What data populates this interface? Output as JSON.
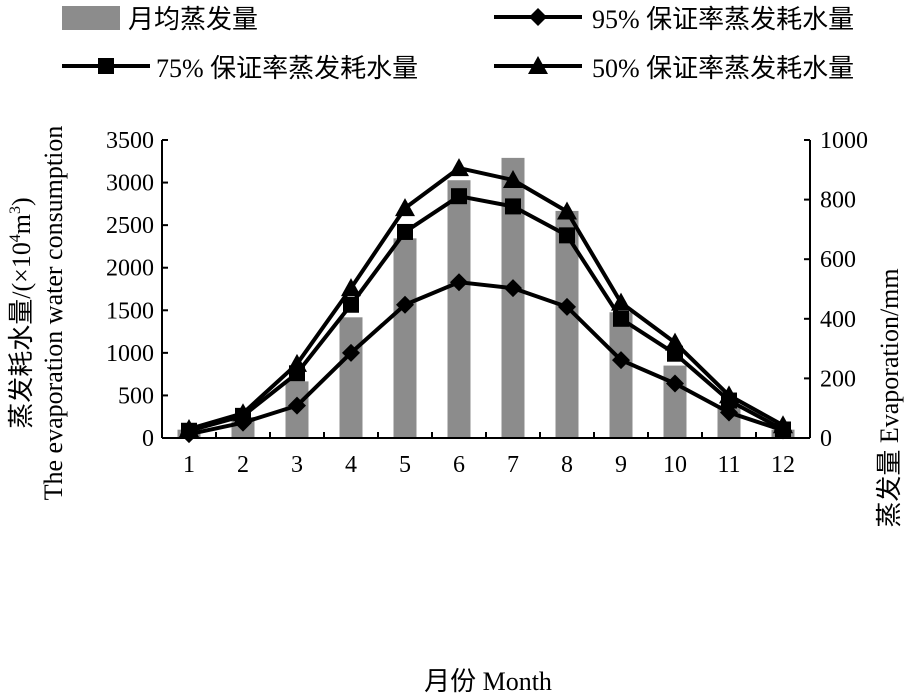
{
  "chart_data": {
    "type": "bar+line",
    "categories": [
      "1",
      "2",
      "3",
      "4",
      "5",
      "6",
      "7",
      "8",
      "9",
      "10",
      "11",
      "12"
    ],
    "bar_series": {
      "name": "月均蒸发量",
      "axis": "right",
      "color": "#8c8c8c",
      "values": [
        28,
        70,
        190,
        405,
        670,
        865,
        940,
        762,
        422,
        243,
        110,
        28
      ]
    },
    "line_series": [
      {
        "name": "95% 保证率蒸发耗水量",
        "marker": "diamond",
        "axis": "left",
        "values": [
          45,
          180,
          380,
          1000,
          1565,
          1830,
          1760,
          1540,
          915,
          640,
          300,
          90
        ]
      },
      {
        "name": "75% 保证率蒸发耗水量",
        "marker": "square",
        "axis": "left",
        "values": [
          85,
          260,
          760,
          1565,
          2420,
          2840,
          2720,
          2380,
          1400,
          990,
          440,
          100
        ]
      },
      {
        "name": "50% 保证率蒸发耗水量",
        "marker": "triangle",
        "axis": "left",
        "values": [
          105,
          290,
          870,
          1760,
          2700,
          3170,
          3030,
          2660,
          1590,
          1120,
          500,
          150
        ]
      }
    ],
    "xlabel": "月份 Month",
    "ylabel_left_cn": "蒸发耗水量/(×10",
    "ylabel_left_sup1": "4",
    "ylabel_left_mid": "m",
    "ylabel_left_sup2": "3",
    "ylabel_left_end": ")",
    "ylabel_left_en": "The evaporation water consumption",
    "ylabel_right": "蒸发量 Evaporation/mm",
    "ylim_left": [
      0,
      3500
    ],
    "yticks_left": [
      "0",
      "500",
      "1000",
      "1500",
      "2000",
      "2500",
      "3000",
      "3500"
    ],
    "ylim_right": [
      0,
      1000
    ],
    "yticks_right": [
      "0",
      "200",
      "400",
      "600",
      "800",
      "1000"
    ],
    "legend_placement": "top"
  }
}
